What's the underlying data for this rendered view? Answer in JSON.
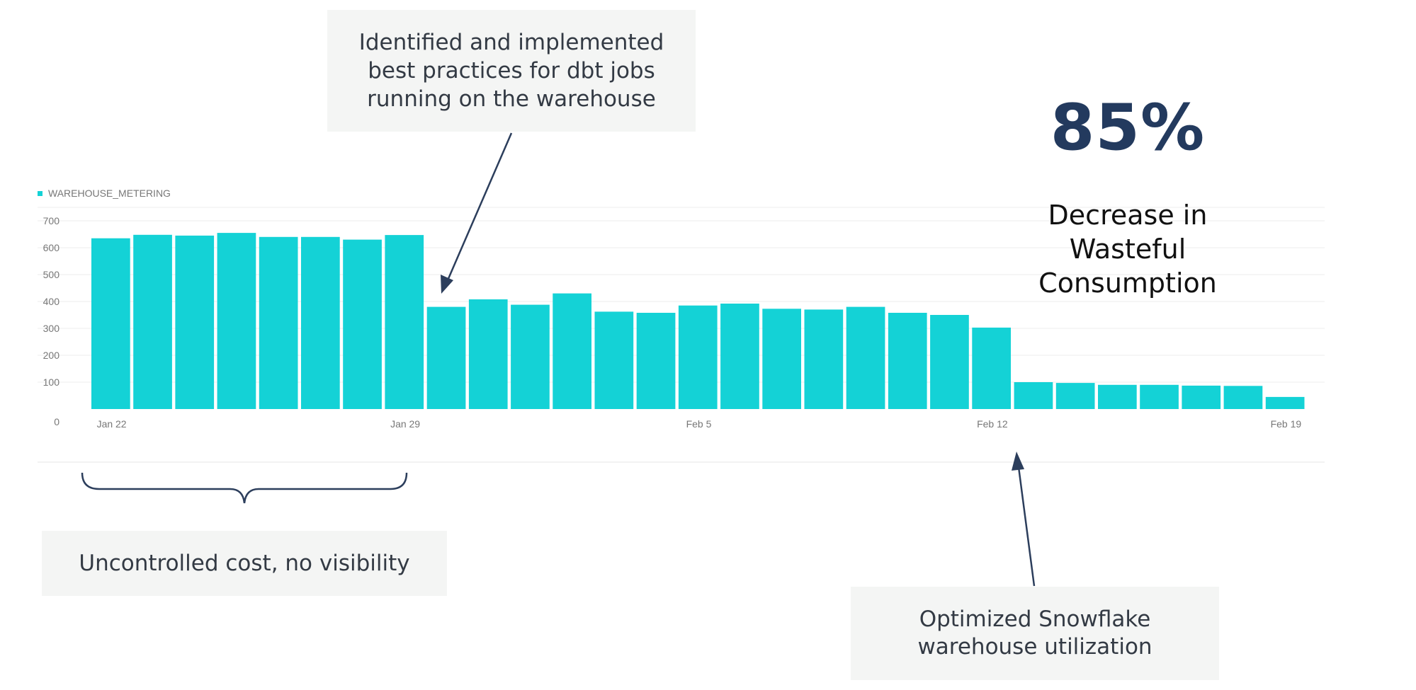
{
  "chart_data": {
    "type": "bar",
    "legend": [
      "WAREHOUSE_METERING"
    ],
    "series": [
      {
        "name": "WAREHOUSE_METERING",
        "values": [
          635,
          648,
          645,
          655,
          640,
          640,
          630,
          647,
          380,
          408,
          388,
          430,
          362,
          358,
          385,
          392,
          373,
          370,
          380,
          358,
          350,
          303,
          100,
          97,
          90,
          90,
          87,
          86,
          45
        ]
      }
    ],
    "x_start": "Jan 22",
    "x_tick_labels": [
      {
        "label": "Jan 22",
        "index": 0
      },
      {
        "label": "Jan 29",
        "index": 7
      },
      {
        "label": "Feb 5",
        "index": 14
      },
      {
        "label": "Feb 12",
        "index": 21
      },
      {
        "label": "Feb 19",
        "index": 28
      }
    ],
    "y_ticks": [
      0,
      100,
      200,
      300,
      400,
      500,
      600,
      700
    ],
    "ylim": [
      0,
      700
    ],
    "grid": true,
    "legend_position": "top-left",
    "bar_color": "#14d2d6"
  },
  "annotations": {
    "top_callout": [
      "Identified and implemented",
      "best practices for dbt jobs",
      "running on the warehouse"
    ],
    "left_callout": "Uncontrolled cost, no visibility",
    "right_callout": [
      "Optimized Snowflake",
      "warehouse utilization"
    ]
  },
  "kpi": {
    "value": "85%",
    "label": [
      "Decrease in",
      "Wasteful",
      "Consumption"
    ]
  },
  "colors": {
    "bar": "#14d2d6",
    "arrow": "#2c3e5c",
    "callout_bg": "#f4f5f4",
    "kpi": "#233a5e"
  }
}
